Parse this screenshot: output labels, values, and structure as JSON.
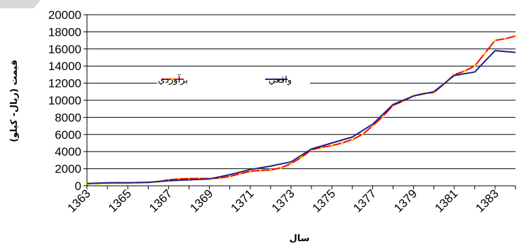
{
  "chart_data": {
    "type": "line",
    "title": "",
    "xlabel": "سال",
    "ylabel": "قيمت (ريال- کيلو)",
    "ylim": [
      0,
      20000
    ],
    "yticks": [
      0,
      2000,
      4000,
      6000,
      8000,
      10000,
      12000,
      14000,
      16000,
      18000,
      20000
    ],
    "xlim": [
      1363,
      1384
    ],
    "xticks": [
      1363,
      1365,
      1367,
      1369,
      1371,
      1373,
      1375,
      1377,
      1379,
      1381,
      1383
    ],
    "grid": "horizontal",
    "legend_position": "top-center",
    "series": [
      {
        "name": "برآوردي",
        "color": "#ff0000",
        "marker_color": "#ffe600",
        "x": [
          1363,
          1363.5,
          1364,
          1364.5,
          1365,
          1365.5,
          1366,
          1366.5,
          1367,
          1367.5,
          1368,
          1368.5,
          1369,
          1369.5,
          1370,
          1370.5,
          1371,
          1371.5,
          1372,
          1372.5,
          1373,
          1373.5,
          1374,
          1374.5,
          1375,
          1375.5,
          1376,
          1376.5,
          1377,
          1377.5,
          1378,
          1378.5,
          1379,
          1379.5,
          1380,
          1380.5,
          1381,
          1381.5,
          1382,
          1382.5,
          1383,
          1383.5,
          1384
        ],
        "values": [
          250,
          300,
          330,
          360,
          350,
          380,
          400,
          500,
          700,
          800,
          850,
          850,
          850,
          900,
          1100,
          1400,
          1700,
          1800,
          1850,
          2100,
          2600,
          3300,
          4200,
          4500,
          4700,
          5000,
          5400,
          6000,
          7000,
          8100,
          9400,
          9900,
          10500,
          10800,
          10900,
          11900,
          13000,
          13400,
          14000,
          15500,
          17000,
          17200,
          17500
        ]
      },
      {
        "name": "واقعي",
        "color": "#1e1e8c",
        "x": [
          1363,
          1364,
          1365,
          1366,
          1367,
          1368,
          1369,
          1370,
          1371,
          1372,
          1373,
          1374,
          1375,
          1376,
          1377,
          1378,
          1379,
          1380,
          1381,
          1382,
          1383,
          1384
        ],
        "values": [
          250,
          350,
          350,
          400,
          600,
          700,
          800,
          1300,
          1900,
          2300,
          2800,
          4300,
          5000,
          5700,
          7200,
          9500,
          10500,
          11000,
          12900,
          13300,
          15800,
          15600
        ]
      }
    ]
  }
}
